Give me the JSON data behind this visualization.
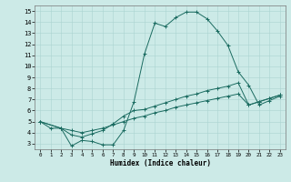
{
  "xlabel": "Humidex (Indice chaleur)",
  "bg_color": "#cceae7",
  "grid_color": "#aad4d0",
  "line_color": "#1a6b60",
  "xlim": [
    -0.5,
    23.5
  ],
  "ylim": [
    2.5,
    15.5
  ],
  "xticks": [
    0,
    1,
    2,
    3,
    4,
    5,
    6,
    7,
    8,
    9,
    10,
    11,
    12,
    13,
    14,
    15,
    16,
    17,
    18,
    19,
    20,
    21,
    22,
    23
  ],
  "yticks": [
    3,
    4,
    5,
    6,
    7,
    8,
    9,
    10,
    11,
    12,
    13,
    14,
    15
  ],
  "line1_x": [
    0,
    1,
    2,
    3,
    4,
    5,
    6,
    7,
    8,
    9,
    10,
    11,
    12,
    13,
    14,
    15,
    16,
    17,
    18,
    19,
    20,
    21,
    22,
    23
  ],
  "line1_y": [
    5.0,
    4.4,
    4.4,
    2.8,
    3.3,
    3.2,
    2.9,
    2.9,
    4.2,
    6.8,
    11.1,
    13.9,
    13.6,
    14.4,
    14.9,
    14.9,
    14.3,
    13.2,
    11.9,
    9.5,
    8.3,
    6.5,
    6.9,
    7.3
  ],
  "line2_x": [
    0,
    2,
    3,
    4,
    5,
    6,
    7,
    8,
    9,
    10,
    11,
    12,
    13,
    14,
    15,
    16,
    17,
    18,
    19,
    20,
    21,
    22,
    23
  ],
  "line2_y": [
    5.0,
    4.4,
    3.8,
    3.6,
    3.9,
    4.2,
    4.8,
    5.5,
    6.0,
    6.1,
    6.4,
    6.7,
    7.0,
    7.3,
    7.5,
    7.8,
    8.0,
    8.2,
    8.5,
    6.5,
    6.8,
    7.1,
    7.4
  ],
  "line3_x": [
    0,
    2,
    3,
    4,
    5,
    6,
    7,
    8,
    9,
    10,
    11,
    12,
    13,
    14,
    15,
    16,
    17,
    18,
    19,
    20,
    21,
    22,
    23
  ],
  "line3_y": [
    5.0,
    4.4,
    4.2,
    4.0,
    4.2,
    4.4,
    4.7,
    5.0,
    5.3,
    5.5,
    5.8,
    6.0,
    6.3,
    6.5,
    6.7,
    6.9,
    7.1,
    7.3,
    7.5,
    6.5,
    6.8,
    7.1,
    7.4
  ]
}
